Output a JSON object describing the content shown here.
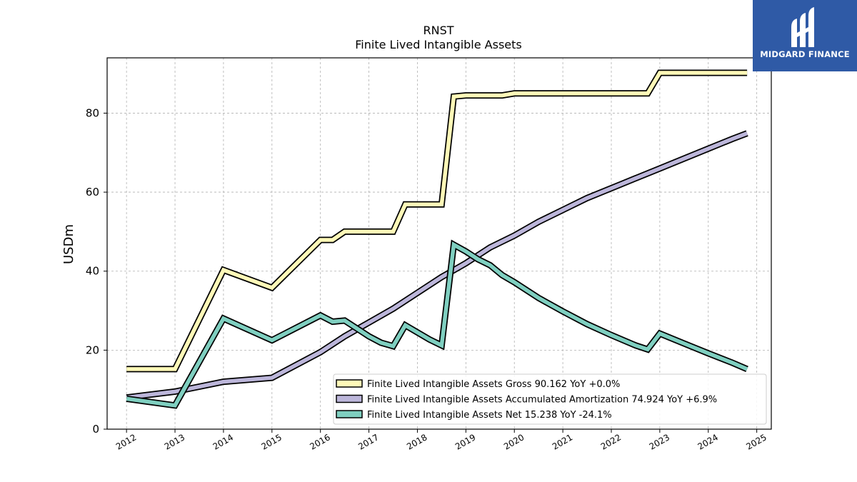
{
  "chart_data": {
    "type": "line",
    "title": "RNST",
    "subtitle": "Finite Lived Intangible Assets",
    "ylabel": "USDm",
    "xlabel": "",
    "ylim": [
      0,
      94
    ],
    "xlim": [
      2011.6,
      2025.3
    ],
    "yticks": [
      0,
      20,
      40,
      60,
      80
    ],
    "xticks": [
      2012,
      2013,
      2014,
      2015,
      2016,
      2017,
      2018,
      2019,
      2020,
      2021,
      2022,
      2023,
      2024,
      2025
    ],
    "grid": true,
    "legend_position": "lower-right",
    "series": [
      {
        "name": "Finite Lived Intangible Assets Gross  90.162 YoY +0.0%",
        "color": "#fff9b8",
        "x": [
          2012.0,
          2013.0,
          2014.0,
          2015.0,
          2016.0,
          2016.25,
          2016.5,
          2016.75,
          2017.0,
          2017.25,
          2017.5,
          2017.75,
          2018.0,
          2018.25,
          2018.5,
          2018.75,
          2019.0,
          2019.25,
          2019.5,
          2019.75,
          2020.0,
          2020.5,
          2021.0,
          2021.5,
          2022.0,
          2022.5,
          2022.75,
          2023.0,
          2023.5,
          2024.0,
          2024.5,
          2024.8
        ],
        "y": [
          15.2,
          15.2,
          40.3,
          35.8,
          47.9,
          47.9,
          50.0,
          50.0,
          50.0,
          50.0,
          50.0,
          56.9,
          56.9,
          56.9,
          56.9,
          84.2,
          84.5,
          84.5,
          84.5,
          84.5,
          85.0,
          85.0,
          85.0,
          85.0,
          85.0,
          85.0,
          85.0,
          90.2,
          90.2,
          90.2,
          90.2,
          90.2
        ]
      },
      {
        "name": "Finite Lived Intangible Assets Accumulated Amortization  74.924 YoY +6.9%",
        "color": "#bcb6da",
        "x": [
          2012.0,
          2013.0,
          2014.0,
          2015.0,
          2016.0,
          2016.5,
          2017.0,
          2017.5,
          2018.0,
          2018.5,
          2019.0,
          2019.5,
          2020.0,
          2020.5,
          2021.0,
          2021.5,
          2022.0,
          2022.5,
          2023.0,
          2023.5,
          2024.0,
          2024.5,
          2024.8
        ],
        "y": [
          8.0,
          9.5,
          12.0,
          13.0,
          19.5,
          23.5,
          27.0,
          30.5,
          34.5,
          38.5,
          42.0,
          46.0,
          49.0,
          52.5,
          55.5,
          58.5,
          61.0,
          63.5,
          66.0,
          68.5,
          71.0,
          73.5,
          74.9
        ]
      },
      {
        "name": "Finite Lived Intangible Assets Net  15.238 YoY -24.1%",
        "color": "#7fcfc0",
        "x": [
          2012.0,
          2013.0,
          2014.0,
          2015.0,
          2016.0,
          2016.25,
          2016.5,
          2016.75,
          2017.0,
          2017.25,
          2017.5,
          2017.75,
          2018.0,
          2018.25,
          2018.5,
          2018.75,
          2019.0,
          2019.25,
          2019.5,
          2019.75,
          2020.0,
          2020.5,
          2021.0,
          2021.5,
          2022.0,
          2022.5,
          2022.75,
          2023.0,
          2023.5,
          2024.0,
          2024.5,
          2024.8
        ],
        "y": [
          7.7,
          6.0,
          28.0,
          22.5,
          28.8,
          27.2,
          27.5,
          25.5,
          23.5,
          21.9,
          21.0,
          26.3,
          24.5,
          22.7,
          21.2,
          46.7,
          45.0,
          43.0,
          41.5,
          39.0,
          37.2,
          33.2,
          29.8,
          26.6,
          23.8,
          21.2,
          20.2,
          24.2,
          21.7,
          19.2,
          16.8,
          15.2
        ]
      }
    ]
  },
  "logo": {
    "text": "MIDGARD FINANCE",
    "background": "#2f5aa6"
  }
}
